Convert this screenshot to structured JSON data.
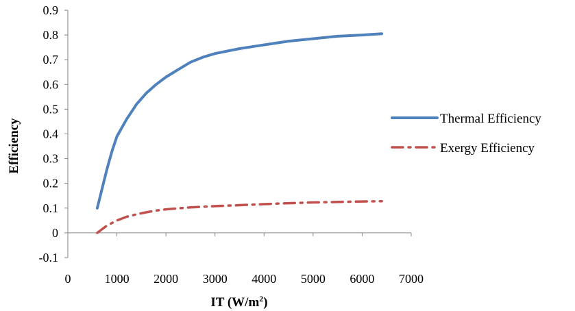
{
  "chart_data": {
    "type": "line",
    "title": "",
    "xlabel": "IT (W/m",
    "xlabel_sup": "2",
    "xlabel_suffix": ")",
    "ylabel": "Efficiency",
    "xlim": [
      0,
      7000
    ],
    "ylim": [
      -0.1,
      0.9
    ],
    "x_ticks": [
      "0",
      "1000",
      "2000",
      "3000",
      "4000",
      "5000",
      "6000",
      "7000"
    ],
    "y_ticks": [
      "-0.1",
      "0",
      "0.1",
      "0.2",
      "0.3",
      "0.4",
      "0.5",
      "0.6",
      "0.7",
      "0.8",
      "0.9"
    ],
    "grid": false,
    "legend_position": "right",
    "series": [
      {
        "name": "Thermal Efficiency",
        "color": "#4F81BD",
        "style": "solid",
        "x": [
          600,
          700,
          800,
          900,
          1000,
          1200,
          1400,
          1600,
          1800,
          2000,
          2250,
          2500,
          2750,
          3000,
          3500,
          4000,
          4500,
          5000,
          5500,
          6000,
          6400
        ],
        "y": [
          0.1,
          0.18,
          0.26,
          0.33,
          0.39,
          0.46,
          0.52,
          0.565,
          0.6,
          0.63,
          0.66,
          0.69,
          0.71,
          0.725,
          0.745,
          0.76,
          0.775,
          0.785,
          0.795,
          0.8,
          0.805
        ]
      },
      {
        "name": "Exergy Efficiency",
        "color": "#C0504D",
        "style": "dash-dot",
        "x": [
          600,
          700,
          800,
          900,
          1000,
          1200,
          1400,
          1600,
          1800,
          2000,
          2500,
          3000,
          3500,
          4000,
          4500,
          5000,
          5500,
          6000,
          6400
        ],
        "y": [
          0.0,
          0.015,
          0.03,
          0.04,
          0.05,
          0.065,
          0.075,
          0.083,
          0.09,
          0.095,
          0.103,
          0.108,
          0.112,
          0.116,
          0.12,
          0.123,
          0.125,
          0.127,
          0.128
        ]
      }
    ]
  }
}
